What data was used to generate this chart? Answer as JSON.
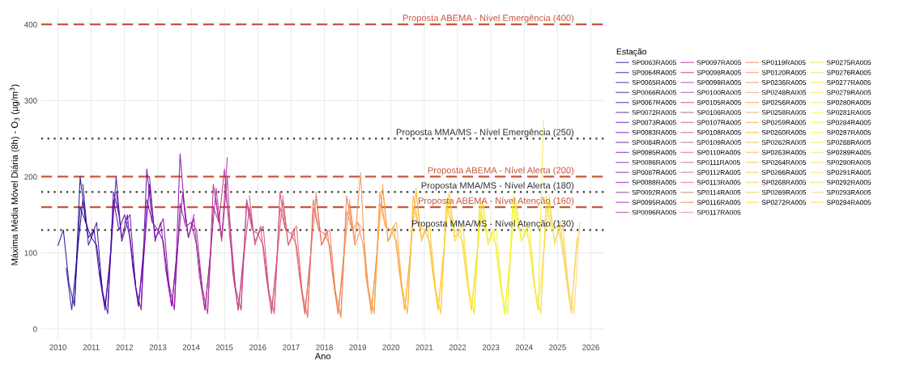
{
  "chart_data": {
    "type": "line",
    "xlabel": "Ano",
    "ylabel": "Máxima Média Móvel Diária (8h) - O$_{3}$ (µg/m$^{3}$)",
    "legend_title": "Estação",
    "legend": "right",
    "grid": true,
    "line_style": "solid",
    "marker": "none",
    "xlim": [
      "2009-07",
      "2026-06"
    ],
    "xticks": [
      "2010",
      "2011",
      "2012",
      "2013",
      "2014",
      "2015",
      "2016",
      "2017",
      "2018",
      "2019",
      "2020",
      "2021",
      "2022",
      "2023",
      "2024",
      "2025",
      "2026"
    ],
    "ylim": [
      -15,
      420
    ],
    "yticks": [
      0,
      100,
      200,
      300,
      400
    ],
    "ref_lines": [
      {
        "axis": "y",
        "value": 400,
        "label": "Proposta ABEMA - Nível Emergência (400)",
        "color": "#c8553d",
        "line_style": "dashed"
      },
      {
        "axis": "y",
        "value": 250,
        "label": "Proposta MMA/MS - Nível Emergência (250)",
        "color": "#333333",
        "line_style": "dotted"
      },
      {
        "axis": "y",
        "value": 200,
        "label": "Proposta ABEMA - Nível Alerta (200)",
        "color": "#c8553d",
        "line_style": "dashed"
      },
      {
        "axis": "y",
        "value": 180,
        "label": "Proposta MMA/MS - Nível Alerta (180)",
        "color": "#333333",
        "line_style": "dotted"
      },
      {
        "axis": "y",
        "value": 160,
        "label": "Proposta ABEMA - Nível Atenção (160)",
        "color": "#c8553d",
        "line_style": "dashed"
      },
      {
        "axis": "y",
        "value": 130,
        "label": "Proposta MMA/MS - Nível Atenção (130)",
        "color": "#333333",
        "line_style": "dotted"
      }
    ],
    "series": [
      {
        "name": "SP0063RA005",
        "color": "#0d0887",
        "x": [
          "2010-01",
          "2010-03",
          "2010-05",
          "2010-07",
          "2010-09",
          "2010-11"
        ],
        "values": [
          110,
          130,
          60,
          30,
          200,
          140
        ]
      },
      {
        "name": "SP0064RA005",
        "color": "#1b068d",
        "x": [
          "2010-04",
          "2010-06",
          "2010-08",
          "2010-10",
          "2010-12",
          "2011-02"
        ],
        "values": [
          80,
          25,
          100,
          170,
          120,
          130
        ]
      },
      {
        "name": "SP0065RA005",
        "color": "#260591",
        "x": [
          "2010-07",
          "2010-09",
          "2010-11",
          "2011-01",
          "2011-03",
          "2011-05"
        ],
        "values": [
          35,
          160,
          140,
          120,
          110,
          55
        ]
      },
      {
        "name": "SP0066RA005",
        "color": "#300597",
        "x": [
          "2010-10",
          "2010-12",
          "2011-02",
          "2011-04",
          "2011-06",
          "2011-08"
        ],
        "values": [
          190,
          110,
          130,
          70,
          25,
          100
        ]
      },
      {
        "name": "SP0067RA005",
        "color": "#3a049a",
        "x": [
          "2011-01",
          "2011-03",
          "2011-05",
          "2011-07",
          "2011-09",
          "2011-11"
        ],
        "values": [
          120,
          140,
          50,
          20,
          180,
          150
        ]
      },
      {
        "name": "SP0072RA005",
        "color": "#44039e",
        "x": [
          "2011-04",
          "2011-06",
          "2011-08",
          "2011-10",
          "2011-12",
          "2012-02"
        ],
        "values": [
          75,
          30,
          95,
          200,
          115,
          140
        ]
      },
      {
        "name": "SP0073RA005",
        "color": "#4e02a2",
        "x": [
          "2011-07",
          "2011-09",
          "2011-11",
          "2012-01",
          "2012-03",
          "2012-05"
        ],
        "values": [
          30,
          170,
          130,
          150,
          120,
          60
        ]
      },
      {
        "name": "SP0083RA005",
        "color": "#5801a4",
        "x": [
          "2011-10",
          "2011-12",
          "2012-02",
          "2012-04",
          "2012-06",
          "2012-08"
        ],
        "values": [
          180,
          120,
          150,
          80,
          30,
          110
        ]
      },
      {
        "name": "SP0084RA005",
        "color": "#6100a7",
        "x": [
          "2012-01",
          "2012-03",
          "2012-05",
          "2012-07",
          "2012-09",
          "2012-11"
        ],
        "values": [
          140,
          150,
          55,
          25,
          210,
          140
        ]
      },
      {
        "name": "SP0085RA005",
        "color": "#6a00a8",
        "x": [
          "2012-04",
          "2012-06",
          "2012-08",
          "2012-10",
          "2012-12",
          "2013-02"
        ],
        "values": [
          85,
          30,
          100,
          190,
          120,
          130
        ]
      },
      {
        "name": "SP0086RA005",
        "color": "#7301a8",
        "x": [
          "2012-07",
          "2012-09",
          "2012-11",
          "2013-01",
          "2013-03",
          "2013-05"
        ],
        "values": [
          30,
          170,
          140,
          130,
          115,
          55
        ]
      },
      {
        "name": "SP0087RA005",
        "color": "#7c02a8",
        "x": [
          "2012-10",
          "2012-12",
          "2013-02",
          "2013-04",
          "2013-06",
          "2013-08"
        ],
        "values": [
          200,
          115,
          140,
          75,
          30,
          105
        ]
      },
      {
        "name": "SP0088RA005",
        "color": "#8405a7",
        "x": [
          "2013-01",
          "2013-03",
          "2013-05",
          "2013-07",
          "2013-09",
          "2013-11"
        ],
        "values": [
          130,
          145,
          60,
          25,
          230,
          140
        ]
      },
      {
        "name": "SP0092RA005",
        "color": "#8c0aa4",
        "x": [
          "2013-04",
          "2013-06",
          "2013-08",
          "2013-10",
          "2013-12",
          "2014-02"
        ],
        "values": [
          80,
          30,
          100,
          180,
          120,
          150
        ]
      },
      {
        "name": "SP0095RA005",
        "color": "#9410a2",
        "x": [
          "2013-07",
          "2013-09",
          "2013-11",
          "2014-01",
          "2014-03",
          "2014-05"
        ],
        "values": [
          30,
          165,
          135,
          140,
          110,
          55
        ]
      },
      {
        "name": "SP0096RA005",
        "color": "#9c179e",
        "x": [
          "2013-10",
          "2013-12",
          "2014-02",
          "2014-04",
          "2014-06",
          "2014-08"
        ],
        "values": [
          175,
          120,
          145,
          70,
          25,
          100
        ]
      },
      {
        "name": "SP0097RA005",
        "color": "#a31e9a",
        "x": [
          "2014-01",
          "2014-03",
          "2014-05",
          "2014-07",
          "2014-09",
          "2014-11"
        ],
        "values": [
          140,
          130,
          55,
          20,
          190,
          140
        ]
      },
      {
        "name": "SP0098RA005",
        "color": "#aa2395",
        "x": [
          "2014-04",
          "2014-06",
          "2014-08",
          "2014-10",
          "2014-12",
          "2015-02"
        ],
        "values": [
          80,
          25,
          100,
          185,
          120,
          225
        ]
      },
      {
        "name": "SP0099RA005",
        "color": "#b12a90",
        "x": [
          "2014-07",
          "2014-09",
          "2014-11",
          "2015-01",
          "2015-03",
          "2015-05"
        ],
        "values": [
          30,
          160,
          140,
          210,
          120,
          55
        ]
      },
      {
        "name": "SP0100RA005",
        "color": "#b7318a",
        "x": [
          "2014-10",
          "2014-12",
          "2015-02",
          "2015-04",
          "2015-06",
          "2015-08"
        ],
        "values": [
          170,
          115,
          200,
          75,
          25,
          100
        ]
      },
      {
        "name": "SP0105RA005",
        "color": "#bd3786",
        "x": [
          "2015-01",
          "2015-03",
          "2015-05",
          "2015-07",
          "2015-09",
          "2015-11"
        ],
        "values": [
          190,
          140,
          55,
          25,
          170,
          135
        ]
      },
      {
        "name": "SP0106RA005",
        "color": "#c33d80",
        "x": [
          "2015-04",
          "2015-06",
          "2015-08",
          "2015-10",
          "2015-12",
          "2016-02"
        ],
        "values": [
          80,
          25,
          95,
          160,
          115,
          130
        ]
      },
      {
        "name": "SP0107RA005",
        "color": "#c8437b",
        "x": [
          "2015-07",
          "2015-09",
          "2015-11",
          "2016-01",
          "2016-03",
          "2016-05"
        ],
        "values": [
          25,
          165,
          130,
          125,
          110,
          50
        ]
      },
      {
        "name": "SP0108RA005",
        "color": "#cc4778",
        "x": [
          "2015-10",
          "2015-12",
          "2016-02",
          "2016-04",
          "2016-06",
          "2016-08"
        ],
        "values": [
          175,
          110,
          135,
          70,
          20,
          95
        ]
      },
      {
        "name": "SP0109RA005",
        "color": "#d14e72",
        "x": [
          "2016-01",
          "2016-03",
          "2016-05",
          "2016-07",
          "2016-09",
          "2016-11"
        ],
        "values": [
          125,
          135,
          50,
          20,
          180,
          130
        ]
      },
      {
        "name": "SP0110RA005",
        "color": "#d5546e",
        "x": [
          "2016-04",
          "2016-06",
          "2016-08",
          "2016-10",
          "2016-12",
          "2017-02"
        ],
        "values": [
          75,
          25,
          95,
          170,
          110,
          125
        ]
      },
      {
        "name": "SP0111RA005",
        "color": "#d9596a",
        "x": [
          "2016-07",
          "2016-09",
          "2016-11",
          "2017-01",
          "2017-03",
          "2017-05"
        ],
        "values": [
          25,
          160,
          130,
          125,
          110,
          50
        ]
      },
      {
        "name": "SP0112RA005",
        "color": "#dd5e66",
        "x": [
          "2016-10",
          "2016-12",
          "2017-02",
          "2017-04",
          "2017-06",
          "2017-08"
        ],
        "values": [
          175,
          110,
          130,
          70,
          20,
          95
        ]
      },
      {
        "name": "SP0113RA005",
        "color": "#e16462",
        "x": [
          "2017-01",
          "2017-03",
          "2017-05",
          "2017-07",
          "2017-09",
          "2017-11"
        ],
        "values": [
          125,
          135,
          50,
          15,
          170,
          130
        ]
      },
      {
        "name": "SP0114RA005",
        "color": "#e5695e",
        "x": [
          "2017-04",
          "2017-06",
          "2017-08",
          "2017-10",
          "2017-12",
          "2018-02"
        ],
        "values": [
          75,
          20,
          95,
          175,
          110,
          125
        ]
      },
      {
        "name": "SP0116RA005",
        "color": "#e86f5a",
        "x": [
          "2017-07",
          "2017-09",
          "2017-11",
          "2018-01",
          "2018-03",
          "2018-05"
        ],
        "values": [
          20,
          160,
          130,
          125,
          110,
          45
        ]
      },
      {
        "name": "SP0117RA005",
        "color": "#eb7655",
        "x": [
          "2017-10",
          "2017-12",
          "2018-02",
          "2018-04",
          "2018-06",
          "2018-08"
        ],
        "values": [
          180,
          110,
          130,
          70,
          20,
          95
        ]
      },
      {
        "name": "SP0119RA005",
        "color": "#ee7b51",
        "x": [
          "2018-01",
          "2018-03",
          "2018-05",
          "2018-07",
          "2018-09",
          "2018-11"
        ],
        "values": [
          125,
          130,
          50,
          15,
          175,
          130
        ]
      },
      {
        "name": "SP0120RA005",
        "color": "#f1814d",
        "x": [
          "2018-04",
          "2018-06",
          "2018-08",
          "2018-10",
          "2018-12",
          "2019-02"
        ],
        "values": [
          75,
          20,
          95,
          165,
          110,
          130
        ]
      },
      {
        "name": "SP0236RA005",
        "color": "#f3874a",
        "x": [
          "2018-07",
          "2018-09",
          "2018-11",
          "2019-01",
          "2019-03",
          "2019-05"
        ],
        "values": [
          20,
          155,
          130,
          140,
          110,
          50
        ]
      },
      {
        "name": "SP0248RA005",
        "color": "#f58d46",
        "x": [
          "2018-10",
          "2018-12",
          "2019-02",
          "2019-04",
          "2019-06",
          "2019-08"
        ],
        "values": [
          170,
          115,
          205,
          70,
          20,
          100
        ]
      },
      {
        "name": "SP0256RA005",
        "color": "#f79342",
        "x": [
          "2019-01",
          "2019-03",
          "2019-05",
          "2019-07",
          "2019-09",
          "2019-11"
        ],
        "values": [
          140,
          130,
          50,
          20,
          180,
          135
        ]
      },
      {
        "name": "SP0258RA005",
        "color": "#f9993f",
        "x": [
          "2019-04",
          "2019-06",
          "2019-08",
          "2019-10",
          "2019-12",
          "2020-02"
        ],
        "values": [
          75,
          25,
          100,
          185,
          115,
          130
        ]
      },
      {
        "name": "SP0259RA005",
        "color": "#fa9f3b",
        "x": [
          "2019-07",
          "2019-09",
          "2019-11",
          "2020-01",
          "2020-03",
          "2020-05"
        ],
        "values": [
          25,
          165,
          135,
          130,
          115,
          55
        ]
      },
      {
        "name": "SP0260RA005",
        "color": "#fba638",
        "x": [
          "2019-10",
          "2019-12",
          "2020-02",
          "2020-04",
          "2020-06",
          "2020-08"
        ],
        "values": [
          190,
          115,
          135,
          75,
          25,
          100
        ]
      },
      {
        "name": "SP0262RA005",
        "color": "#fcac35",
        "x": [
          "2020-01",
          "2020-03",
          "2020-05",
          "2020-07",
          "2020-09",
          "2020-11"
        ],
        "values": [
          130,
          140,
          55,
          20,
          175,
          135
        ]
      },
      {
        "name": "SP0263RA005",
        "color": "#fdb232",
        "x": [
          "2020-04",
          "2020-06",
          "2020-08",
          "2020-10",
          "2020-12",
          "2021-02"
        ],
        "values": [
          80,
          25,
          100,
          180,
          120,
          135
        ]
      },
      {
        "name": "SP0264RA005",
        "color": "#fdb82f",
        "x": [
          "2020-07",
          "2020-09",
          "2020-11",
          "2021-01",
          "2021-03",
          "2021-05"
        ],
        "values": [
          25,
          160,
          135,
          130,
          115,
          55
        ]
      },
      {
        "name": "SP0266RA005",
        "color": "#fdbf2d",
        "x": [
          "2020-10",
          "2020-12",
          "2021-02",
          "2021-04",
          "2021-06",
          "2021-08"
        ],
        "values": [
          185,
          115,
          135,
          75,
          25,
          100
        ]
      },
      {
        "name": "SP0268RA005",
        "color": "#fdc52a",
        "x": [
          "2021-01",
          "2021-03",
          "2021-05",
          "2021-07",
          "2021-09",
          "2021-11"
        ],
        "values": [
          130,
          135,
          55,
          20,
          170,
          135
        ]
      },
      {
        "name": "SP0269RA005",
        "color": "#fccb27",
        "x": [
          "2021-04",
          "2021-06",
          "2021-08",
          "2021-10",
          "2021-12",
          "2022-02"
        ],
        "values": [
          80,
          25,
          100,
          180,
          120,
          130
        ]
      },
      {
        "name": "SP0272RA005",
        "color": "#fbd126",
        "x": [
          "2021-07",
          "2021-09",
          "2021-11",
          "2022-01",
          "2022-03",
          "2022-05"
        ],
        "values": [
          25,
          160,
          135,
          125,
          115,
          55
        ]
      },
      {
        "name": "SP0275RA005",
        "color": "#fad825",
        "x": [
          "2021-10",
          "2021-12",
          "2022-02",
          "2022-04",
          "2022-06",
          "2022-08"
        ],
        "values": [
          170,
          115,
          130,
          75,
          25,
          100
        ]
      },
      {
        "name": "SP0276RA005",
        "color": "#f8de25",
        "x": [
          "2022-01",
          "2022-03",
          "2022-05",
          "2022-07",
          "2022-09",
          "2022-11"
        ],
        "values": [
          130,
          135,
          55,
          20,
          165,
          130
        ]
      },
      {
        "name": "SP0277RA005",
        "color": "#f6e425",
        "x": [
          "2022-04",
          "2022-06",
          "2022-08",
          "2022-10",
          "2022-12",
          "2023-02"
        ],
        "values": [
          75,
          25,
          95,
          170,
          115,
          130
        ]
      },
      {
        "name": "SP0279RA005",
        "color": "#f4ea25",
        "x": [
          "2022-07",
          "2022-09",
          "2022-11",
          "2023-01",
          "2023-03",
          "2023-05"
        ],
        "values": [
          20,
          155,
          130,
          125,
          110,
          50
        ]
      },
      {
        "name": "SP0280RA005",
        "color": "#f2f024",
        "x": [
          "2022-10",
          "2022-12",
          "2023-02",
          "2023-04",
          "2023-06",
          "2023-08"
        ],
        "values": [
          165,
          110,
          130,
          70,
          20,
          95
        ]
      },
      {
        "name": "SP0281RA005",
        "color": "#f0f921",
        "x": [
          "2023-01",
          "2023-03",
          "2023-05",
          "2023-07",
          "2023-09",
          "2023-11"
        ],
        "values": [
          125,
          130,
          50,
          20,
          175,
          130
        ]
      },
      {
        "name": "SP0284RA005",
        "color": "#f2f427",
        "x": [
          "2023-04",
          "2023-06",
          "2023-08",
          "2023-10",
          "2023-12",
          "2024-02"
        ],
        "values": [
          75,
          20,
          95,
          165,
          115,
          130
        ]
      },
      {
        "name": "SP0287RA005",
        "color": "#f4ef2e",
        "x": [
          "2023-07",
          "2023-09",
          "2023-11",
          "2024-01",
          "2024-03",
          "2024-05"
        ],
        "values": [
          20,
          160,
          130,
          130,
          115,
          50
        ]
      },
      {
        "name": "SP0288RA005",
        "color": "#f5ea35",
        "x": [
          "2023-10",
          "2023-12",
          "2024-02",
          "2024-04",
          "2024-06",
          "2024-08"
        ],
        "values": [
          170,
          115,
          135,
          75,
          25,
          275
        ]
      },
      {
        "name": "SP0289RA005",
        "color": "#f6e53c",
        "x": [
          "2024-01",
          "2024-03",
          "2024-05",
          "2024-07",
          "2024-09",
          "2024-11"
        ],
        "values": [
          130,
          135,
          50,
          20,
          175,
          135
        ]
      },
      {
        "name": "SP0290RA005",
        "color": "#f7e043",
        "x": [
          "2024-04",
          "2024-06",
          "2024-08",
          "2024-10",
          "2024-12",
          "2025-02"
        ],
        "values": [
          75,
          25,
          100,
          170,
          115,
          140
        ]
      },
      {
        "name": "SP0291RA005",
        "color": "#f8db4a",
        "x": [
          "2024-07",
          "2024-09",
          "2024-11",
          "2025-01",
          "2025-03",
          "2025-05"
        ],
        "values": [
          25,
          160,
          130,
          135,
          115,
          55
        ]
      },
      {
        "name": "SP0292RA005",
        "color": "#f9d651",
        "x": [
          "2024-10",
          "2024-12",
          "2025-02",
          "2025-04",
          "2025-06",
          "2025-08"
        ],
        "values": [
          175,
          110,
          140,
          70,
          20,
          120
        ]
      },
      {
        "name": "SP0293RA005",
        "color": "#fad158",
        "x": [
          "2025-01",
          "2025-02",
          "2025-03",
          "2025-05",
          "2025-07",
          "2025-09"
        ],
        "values": [
          130,
          120,
          135,
          55,
          20,
          140
        ]
      },
      {
        "name": "SP0294RA005",
        "color": "#fbcc5f",
        "x": [
          "2025-02",
          "2025-04",
          "2025-05",
          "2025-06",
          "2025-08",
          "2025-09"
        ],
        "values": [
          120,
          75,
          50,
          25,
          110,
          130
        ]
      }
    ]
  }
}
